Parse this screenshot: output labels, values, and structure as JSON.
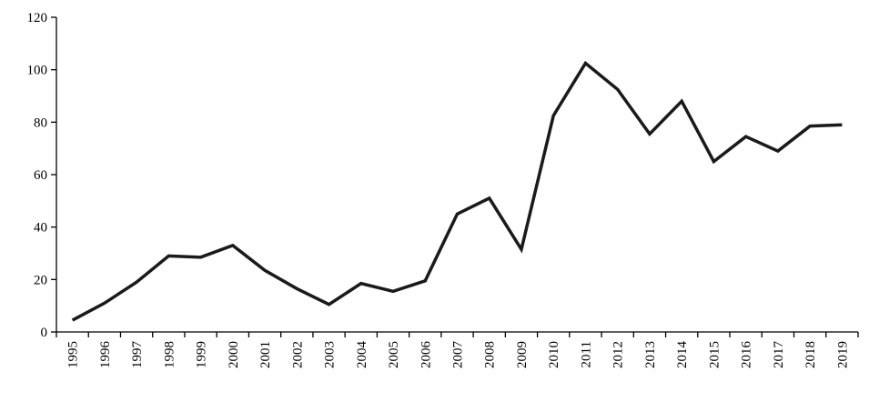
{
  "chart_data": {
    "type": "line",
    "title": "",
    "xlabel": "",
    "ylabel": "",
    "categories": [
      "1995",
      "1996",
      "1997",
      "1998",
      "1999",
      "2000",
      "2001",
      "2002",
      "2003",
      "2004",
      "2005",
      "2006",
      "2007",
      "2008",
      "2009",
      "2010",
      "2011",
      "2012",
      "2013",
      "2014",
      "2015",
      "2016",
      "2017",
      "2018",
      "2019"
    ],
    "series": [
      {
        "values": [
          4.5,
          11,
          19,
          29,
          28.5,
          33,
          23.5,
          16.5,
          10.5,
          18.5,
          15.5,
          19.5,
          45,
          51,
          31.5,
          82.5,
          102.5,
          92.5,
          75.5,
          88,
          65,
          74.5,
          69,
          78.5,
          79
        ]
      }
    ],
    "ylim": [
      0,
      120
    ],
    "yticks": [
      0,
      20,
      40,
      60,
      80,
      100,
      120
    ],
    "grid": false,
    "legend": "none",
    "colors": {
      "line": "#1a1a1a",
      "axis": "#000000"
    }
  }
}
